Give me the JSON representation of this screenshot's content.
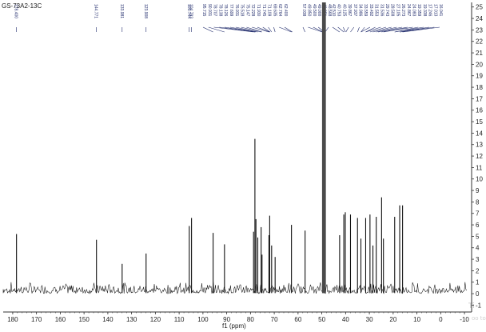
{
  "chart_data": {
    "type": "line",
    "title": "GS-73A2-13C",
    "xlabel": "f1 (ppm)",
    "xlim": [
      184,
      -13
    ],
    "ylim": [
      -1.6,
      25.4
    ],
    "x_ticks": [
      180,
      170,
      160,
      150,
      140,
      130,
      120,
      110,
      100,
      90,
      80,
      70,
      60,
      50,
      40,
      30,
      20,
      10,
      0,
      -10
    ],
    "x_tick_labels": [
      "180",
      "170",
      "160",
      "150",
      "140",
      "130",
      "120",
      "110",
      "100",
      "90",
      "80",
      "70",
      "60",
      "50",
      "40",
      "30",
      "20",
      "10",
      "0",
      "-10"
    ],
    "y_ticks": [
      -1,
      0,
      1,
      2,
      3,
      4,
      5,
      6,
      7,
      8,
      9,
      10,
      11,
      12,
      13,
      14,
      15,
      16,
      17,
      18,
      19,
      20,
      21,
      22,
      23,
      24,
      25
    ],
    "y_tick_labels": [
      "-1",
      "0",
      "1",
      "2",
      "3",
      "4",
      "5",
      "6",
      "7",
      "8",
      "9",
      "10",
      "11",
      "12",
      "13",
      "14",
      "15",
      "16",
      "17",
      "18",
      "19",
      "20",
      "21",
      "22",
      "23",
      "24",
      "25"
    ],
    "peak_labels_left": [
      "178.400",
      "144.771",
      "133.981",
      "123.908",
      "105.744",
      "104.793"
    ],
    "peak_labels_mid": [
      "95.715",
      "90.931",
      "78.707",
      "78.138",
      "78.126",
      "77.699",
      "76.931",
      "75.518",
      "75.147",
      "72.228",
      "71.930",
      "71.745",
      "71.109",
      "69.635",
      "62.764",
      "62.400"
    ],
    "peak_labels_solvent": [
      "57.038",
      "49.850",
      "49.500",
      "49.000",
      "48.851",
      "48.568"
    ],
    "peak_labels_right": [
      "42.510",
      "40.753",
      "40.125",
      "39.867",
      "37.937",
      "34.986",
      "33.559",
      "33.492",
      "31.553",
      "31.536",
      "29.743",
      "28.508",
      "27.105",
      "26.273",
      "24.867",
      "24.083",
      "19.359",
      "19.338",
      "17.246",
      "17.013",
      "16.041"
    ],
    "series": [
      {
        "peaks": [
          {
            "x": 178.4,
            "y": 5.2
          },
          {
            "x": 144.771,
            "y": 4.7
          },
          {
            "x": 133.981,
            "y": 2.6
          },
          {
            "x": 123.908,
            "y": 3.5
          },
          {
            "x": 105.744,
            "y": 5.9
          },
          {
            "x": 104.793,
            "y": 6.6
          },
          {
            "x": 95.715,
            "y": 5.3
          },
          {
            "x": 90.931,
            "y": 4.3
          },
          {
            "x": 78.707,
            "y": 5.4
          },
          {
            "x": 78.138,
            "y": 13.5
          },
          {
            "x": 77.699,
            "y": 6.5
          },
          {
            "x": 76.931,
            "y": 4.9
          },
          {
            "x": 75.518,
            "y": 5.8
          },
          {
            "x": 75.147,
            "y": 3.4
          },
          {
            "x": 72.228,
            "y": 5.1
          },
          {
            "x": 71.93,
            "y": 6.8
          },
          {
            "x": 71.109,
            "y": 4.2
          },
          {
            "x": 69.635,
            "y": 3.2
          },
          {
            "x": 62.764,
            "y": 6.0
          },
          {
            "x": 57.038,
            "y": 5.5
          },
          {
            "x": 49.5,
            "y": 25.4
          },
          {
            "x": 49.0,
            "y": 25.4
          },
          {
            "x": 48.568,
            "y": 25.4
          },
          {
            "x": 42.51,
            "y": 5.1
          },
          {
            "x": 40.753,
            "y": 6.9
          },
          {
            "x": 40.125,
            "y": 7.1
          },
          {
            "x": 37.937,
            "y": 6.9
          },
          {
            "x": 34.986,
            "y": 6.6
          },
          {
            "x": 33.559,
            "y": 4.8
          },
          {
            "x": 31.553,
            "y": 6.6
          },
          {
            "x": 29.743,
            "y": 6.9
          },
          {
            "x": 28.508,
            "y": 4.2
          },
          {
            "x": 27.105,
            "y": 6.7
          },
          {
            "x": 24.867,
            "y": 8.4
          },
          {
            "x": 24.083,
            "y": 4.8
          },
          {
            "x": 19.359,
            "y": 6.7
          },
          {
            "x": 17.246,
            "y": 7.7
          },
          {
            "x": 16.041,
            "y": 7.7
          }
        ]
      }
    ]
  }
}
